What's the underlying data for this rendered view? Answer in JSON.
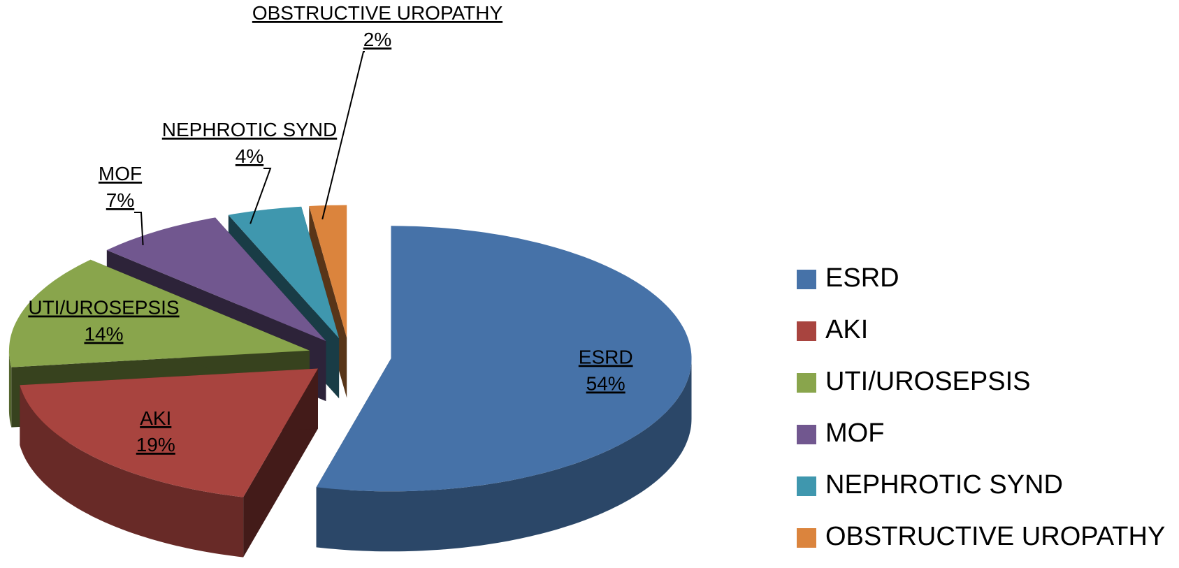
{
  "chart_data": {
    "type": "pie3d",
    "categories": [
      "ESRD",
      "AKI",
      "UTI/UROSEPSIS",
      "MOF",
      "NEPHROTIC SYND",
      "OBSTRUCTIVE UROPATHY"
    ],
    "values": [
      54,
      19,
      14,
      7,
      4,
      2
    ],
    "value_labels": [
      "54%",
      "19%",
      "14%",
      "7%",
      "4%",
      "2%"
    ],
    "colors": [
      "#4672a8",
      "#a8443f",
      "#89a54c",
      "#71578f",
      "#3f97ae",
      "#db843d"
    ],
    "legend": "right"
  }
}
